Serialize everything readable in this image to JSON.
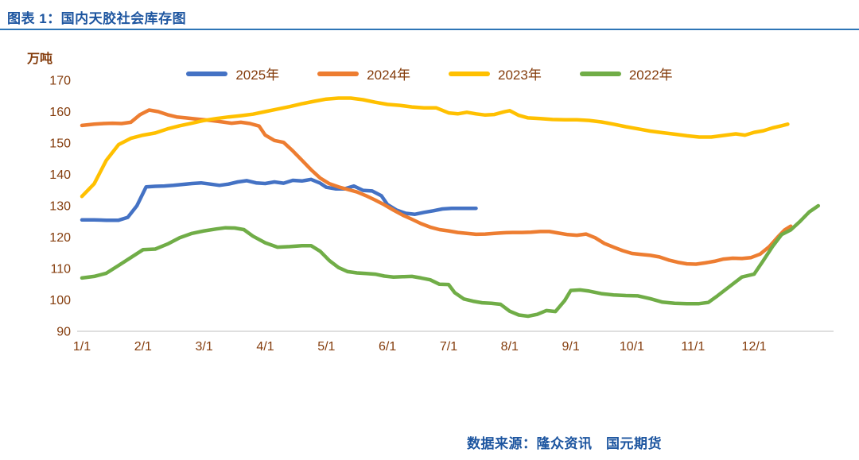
{
  "header": {
    "title": "图表 1：国内天胶社会库存图"
  },
  "footer": {
    "source": "数据来源：隆众资讯　国元期货"
  },
  "colors": {
    "title_blue": "#1E56A0",
    "rule_blue": "#2E75B6",
    "axis_label": "#843C0C",
    "axis_line": "#BFBFBF"
  },
  "chart_data": {
    "type": "line",
    "title": "国内天胶社会库存图",
    "unit_label": "万吨",
    "ylabel": "万吨",
    "xlabel": "",
    "ylim": [
      90,
      170
    ],
    "xlim": [
      0,
      12.3
    ],
    "grid": false,
    "legend_position": "top",
    "y_ticks": [
      170,
      160,
      150,
      140,
      130,
      120,
      110,
      100,
      90
    ],
    "x_tick_labels": [
      "1/1",
      "2/1",
      "3/1",
      "4/1",
      "5/1",
      "6/1",
      "7/1",
      "8/1",
      "9/1",
      "10/1",
      "11/1",
      "12/1"
    ],
    "series": [
      {
        "name": "2025年",
        "color": "#4472C4",
        "points": [
          [
            0,
            125.5
          ],
          [
            0.2,
            125.5
          ],
          [
            0.4,
            125.4
          ],
          [
            0.6,
            125.4
          ],
          [
            0.75,
            126.3
          ],
          [
            0.9,
            130
          ],
          [
            1.05,
            136
          ],
          [
            1.2,
            136.2
          ],
          [
            1.35,
            136.3
          ],
          [
            1.5,
            136.5
          ],
          [
            1.65,
            136.8
          ],
          [
            1.8,
            137.1
          ],
          [
            1.95,
            137.3
          ],
          [
            2.1,
            136.9
          ],
          [
            2.25,
            136.5
          ],
          [
            2.4,
            136.9
          ],
          [
            2.55,
            137.6
          ],
          [
            2.7,
            138
          ],
          [
            2.85,
            137.3
          ],
          [
            3.0,
            137.1
          ],
          [
            3.15,
            137.6
          ],
          [
            3.3,
            137.2
          ],
          [
            3.45,
            138.1
          ],
          [
            3.6,
            137.9
          ],
          [
            3.75,
            138.4
          ],
          [
            3.9,
            137.2
          ],
          [
            4.0,
            135.9
          ],
          [
            4.15,
            135.4
          ],
          [
            4.3,
            135.4
          ],
          [
            4.45,
            136.3
          ],
          [
            4.6,
            134.9
          ],
          [
            4.75,
            134.7
          ],
          [
            4.9,
            133.2
          ],
          [
            5.0,
            130.4
          ],
          [
            5.15,
            128.6
          ],
          [
            5.3,
            127.6
          ],
          [
            5.45,
            127.3
          ],
          [
            5.6,
            127.9
          ],
          [
            5.75,
            128.4
          ],
          [
            5.9,
            129
          ],
          [
            6.05,
            129.2
          ],
          [
            6.25,
            129.2
          ],
          [
            6.45,
            129.2
          ]
        ]
      },
      {
        "name": "2024年",
        "color": "#ED7D31",
        "points": [
          [
            0,
            155.6
          ],
          [
            0.2,
            156
          ],
          [
            0.35,
            156.2
          ],
          [
            0.5,
            156.3
          ],
          [
            0.65,
            156.2
          ],
          [
            0.8,
            156.6
          ],
          [
            0.95,
            159
          ],
          [
            1.1,
            160.5
          ],
          [
            1.25,
            160
          ],
          [
            1.4,
            159
          ],
          [
            1.55,
            158.3
          ],
          [
            1.7,
            158
          ],
          [
            1.85,
            157.7
          ],
          [
            2.0,
            157.4
          ],
          [
            2.15,
            157.1
          ],
          [
            2.3,
            156.7
          ],
          [
            2.45,
            156.3
          ],
          [
            2.6,
            156.6
          ],
          [
            2.75,
            156.2
          ],
          [
            2.9,
            155.4
          ],
          [
            3.0,
            152.5
          ],
          [
            3.15,
            150.8
          ],
          [
            3.3,
            150.2
          ],
          [
            3.45,
            147.5
          ],
          [
            3.6,
            144.5
          ],
          [
            3.75,
            141.5
          ],
          [
            3.9,
            138.8
          ],
          [
            4.05,
            137
          ],
          [
            4.2,
            136
          ],
          [
            4.35,
            135.2
          ],
          [
            4.5,
            134.4
          ],
          [
            4.65,
            133.2
          ],
          [
            4.8,
            131.8
          ],
          [
            4.95,
            130.3
          ],
          [
            5.1,
            128.6
          ],
          [
            5.25,
            127
          ],
          [
            5.4,
            125.7
          ],
          [
            5.55,
            124.3
          ],
          [
            5.7,
            123.2
          ],
          [
            5.85,
            122.4
          ],
          [
            6.0,
            122
          ],
          [
            6.15,
            121.5
          ],
          [
            6.3,
            121.2
          ],
          [
            6.45,
            120.9
          ],
          [
            6.6,
            121
          ],
          [
            6.75,
            121.2
          ],
          [
            6.9,
            121.4
          ],
          [
            7.05,
            121.5
          ],
          [
            7.2,
            121.5
          ],
          [
            7.35,
            121.6
          ],
          [
            7.5,
            121.8
          ],
          [
            7.65,
            121.8
          ],
          [
            7.8,
            121.3
          ],
          [
            7.95,
            120.8
          ],
          [
            8.1,
            120.6
          ],
          [
            8.25,
            121
          ],
          [
            8.4,
            119.8
          ],
          [
            8.55,
            118
          ],
          [
            8.7,
            116.8
          ],
          [
            8.85,
            115.7
          ],
          [
            9.0,
            114.8
          ],
          [
            9.15,
            114.5
          ],
          [
            9.3,
            114.2
          ],
          [
            9.45,
            113.7
          ],
          [
            9.6,
            112.7
          ],
          [
            9.75,
            112
          ],
          [
            9.9,
            111.5
          ],
          [
            10.05,
            111.4
          ],
          [
            10.2,
            111.8
          ],
          [
            10.35,
            112.3
          ],
          [
            10.5,
            113
          ],
          [
            10.65,
            113.3
          ],
          [
            10.8,
            113.2
          ],
          [
            10.95,
            113.5
          ],
          [
            11.1,
            114.6
          ],
          [
            11.25,
            117
          ],
          [
            11.4,
            120.3
          ],
          [
            11.5,
            122.3
          ],
          [
            11.6,
            123.5
          ]
        ]
      },
      {
        "name": "2023年",
        "color": "#FFC000",
        "points": [
          [
            0,
            133
          ],
          [
            0.2,
            137
          ],
          [
            0.4,
            144.5
          ],
          [
            0.6,
            149.5
          ],
          [
            0.8,
            151.5
          ],
          [
            1.0,
            152.5
          ],
          [
            1.2,
            153.2
          ],
          [
            1.4,
            154.5
          ],
          [
            1.6,
            155.5
          ],
          [
            1.8,
            156.3
          ],
          [
            2.0,
            157.2
          ],
          [
            2.2,
            157.8
          ],
          [
            2.4,
            158.3
          ],
          [
            2.6,
            158.7
          ],
          [
            2.8,
            159.2
          ],
          [
            3.0,
            160
          ],
          [
            3.2,
            160.8
          ],
          [
            3.4,
            161.6
          ],
          [
            3.6,
            162.5
          ],
          [
            3.8,
            163.3
          ],
          [
            4.0,
            164
          ],
          [
            4.2,
            164.3
          ],
          [
            4.4,
            164.3
          ],
          [
            4.6,
            163.8
          ],
          [
            4.8,
            163
          ],
          [
            5.0,
            162.3
          ],
          [
            5.2,
            162
          ],
          [
            5.4,
            161.5
          ],
          [
            5.6,
            161.2
          ],
          [
            5.8,
            161.2
          ],
          [
            6.0,
            159.6
          ],
          [
            6.15,
            159.3
          ],
          [
            6.3,
            159.8
          ],
          [
            6.45,
            159.3
          ],
          [
            6.6,
            158.9
          ],
          [
            6.75,
            159.1
          ],
          [
            6.9,
            159.9
          ],
          [
            7.0,
            160.3
          ],
          [
            7.15,
            158.8
          ],
          [
            7.3,
            158
          ],
          [
            7.5,
            157.8
          ],
          [
            7.7,
            157.5
          ],
          [
            7.9,
            157.4
          ],
          [
            8.1,
            157.4
          ],
          [
            8.3,
            157.2
          ],
          [
            8.5,
            156.7
          ],
          [
            8.7,
            156
          ],
          [
            8.9,
            155.2
          ],
          [
            9.1,
            154.5
          ],
          [
            9.3,
            153.8
          ],
          [
            9.5,
            153.3
          ],
          [
            9.7,
            152.8
          ],
          [
            9.9,
            152.3
          ],
          [
            10.1,
            151.9
          ],
          [
            10.3,
            151.9
          ],
          [
            10.5,
            152.4
          ],
          [
            10.7,
            152.9
          ],
          [
            10.85,
            152.5
          ],
          [
            11.0,
            153.4
          ],
          [
            11.15,
            153.9
          ],
          [
            11.3,
            154.8
          ],
          [
            11.45,
            155.5
          ],
          [
            11.55,
            156
          ]
        ]
      },
      {
        "name": "2022年",
        "color": "#70AD47",
        "points": [
          [
            0,
            107
          ],
          [
            0.2,
            107.5
          ],
          [
            0.4,
            108.5
          ],
          [
            0.6,
            111
          ],
          [
            0.8,
            113.5
          ],
          [
            1.0,
            116
          ],
          [
            1.2,
            116.2
          ],
          [
            1.4,
            117.8
          ],
          [
            1.6,
            119.8
          ],
          [
            1.8,
            121.2
          ],
          [
            2.0,
            122
          ],
          [
            2.2,
            122.6
          ],
          [
            2.35,
            123
          ],
          [
            2.5,
            122.9
          ],
          [
            2.65,
            122.4
          ],
          [
            2.8,
            120.3
          ],
          [
            3.0,
            118.2
          ],
          [
            3.2,
            116.8
          ],
          [
            3.4,
            117
          ],
          [
            3.6,
            117.3
          ],
          [
            3.75,
            117.3
          ],
          [
            3.9,
            115.5
          ],
          [
            4.05,
            112.5
          ],
          [
            4.2,
            110.3
          ],
          [
            4.35,
            109
          ],
          [
            4.5,
            108.6
          ],
          [
            4.65,
            108.4
          ],
          [
            4.8,
            108.2
          ],
          [
            4.95,
            107.6
          ],
          [
            5.1,
            107.3
          ],
          [
            5.25,
            107.4
          ],
          [
            5.4,
            107.5
          ],
          [
            5.55,
            107
          ],
          [
            5.7,
            106.4
          ],
          [
            5.85,
            105
          ],
          [
            6.0,
            104.9
          ],
          [
            6.1,
            102.3
          ],
          [
            6.25,
            100.3
          ],
          [
            6.4,
            99.6
          ],
          [
            6.55,
            99.1
          ],
          [
            6.7,
            98.9
          ],
          [
            6.85,
            98.6
          ],
          [
            7.0,
            96.4
          ],
          [
            7.15,
            95.2
          ],
          [
            7.3,
            94.8
          ],
          [
            7.45,
            95.4
          ],
          [
            7.6,
            96.6
          ],
          [
            7.75,
            96.3
          ],
          [
            7.9,
            99.8
          ],
          [
            8.0,
            103
          ],
          [
            8.15,
            103.2
          ],
          [
            8.3,
            102.8
          ],
          [
            8.5,
            102
          ],
          [
            8.7,
            101.6
          ],
          [
            8.9,
            101.4
          ],
          [
            9.1,
            101.3
          ],
          [
            9.3,
            100.4
          ],
          [
            9.5,
            99.3
          ],
          [
            9.7,
            98.9
          ],
          [
            9.9,
            98.8
          ],
          [
            10.1,
            98.8
          ],
          [
            10.25,
            99.2
          ],
          [
            10.4,
            101.3
          ],
          [
            10.6,
            104.3
          ],
          [
            10.8,
            107.3
          ],
          [
            11.0,
            108.2
          ],
          [
            11.15,
            112.5
          ],
          [
            11.3,
            117
          ],
          [
            11.45,
            120.8
          ],
          [
            11.6,
            122.3
          ],
          [
            11.75,
            125
          ],
          [
            11.9,
            128
          ],
          [
            12.05,
            130
          ]
        ]
      }
    ]
  }
}
